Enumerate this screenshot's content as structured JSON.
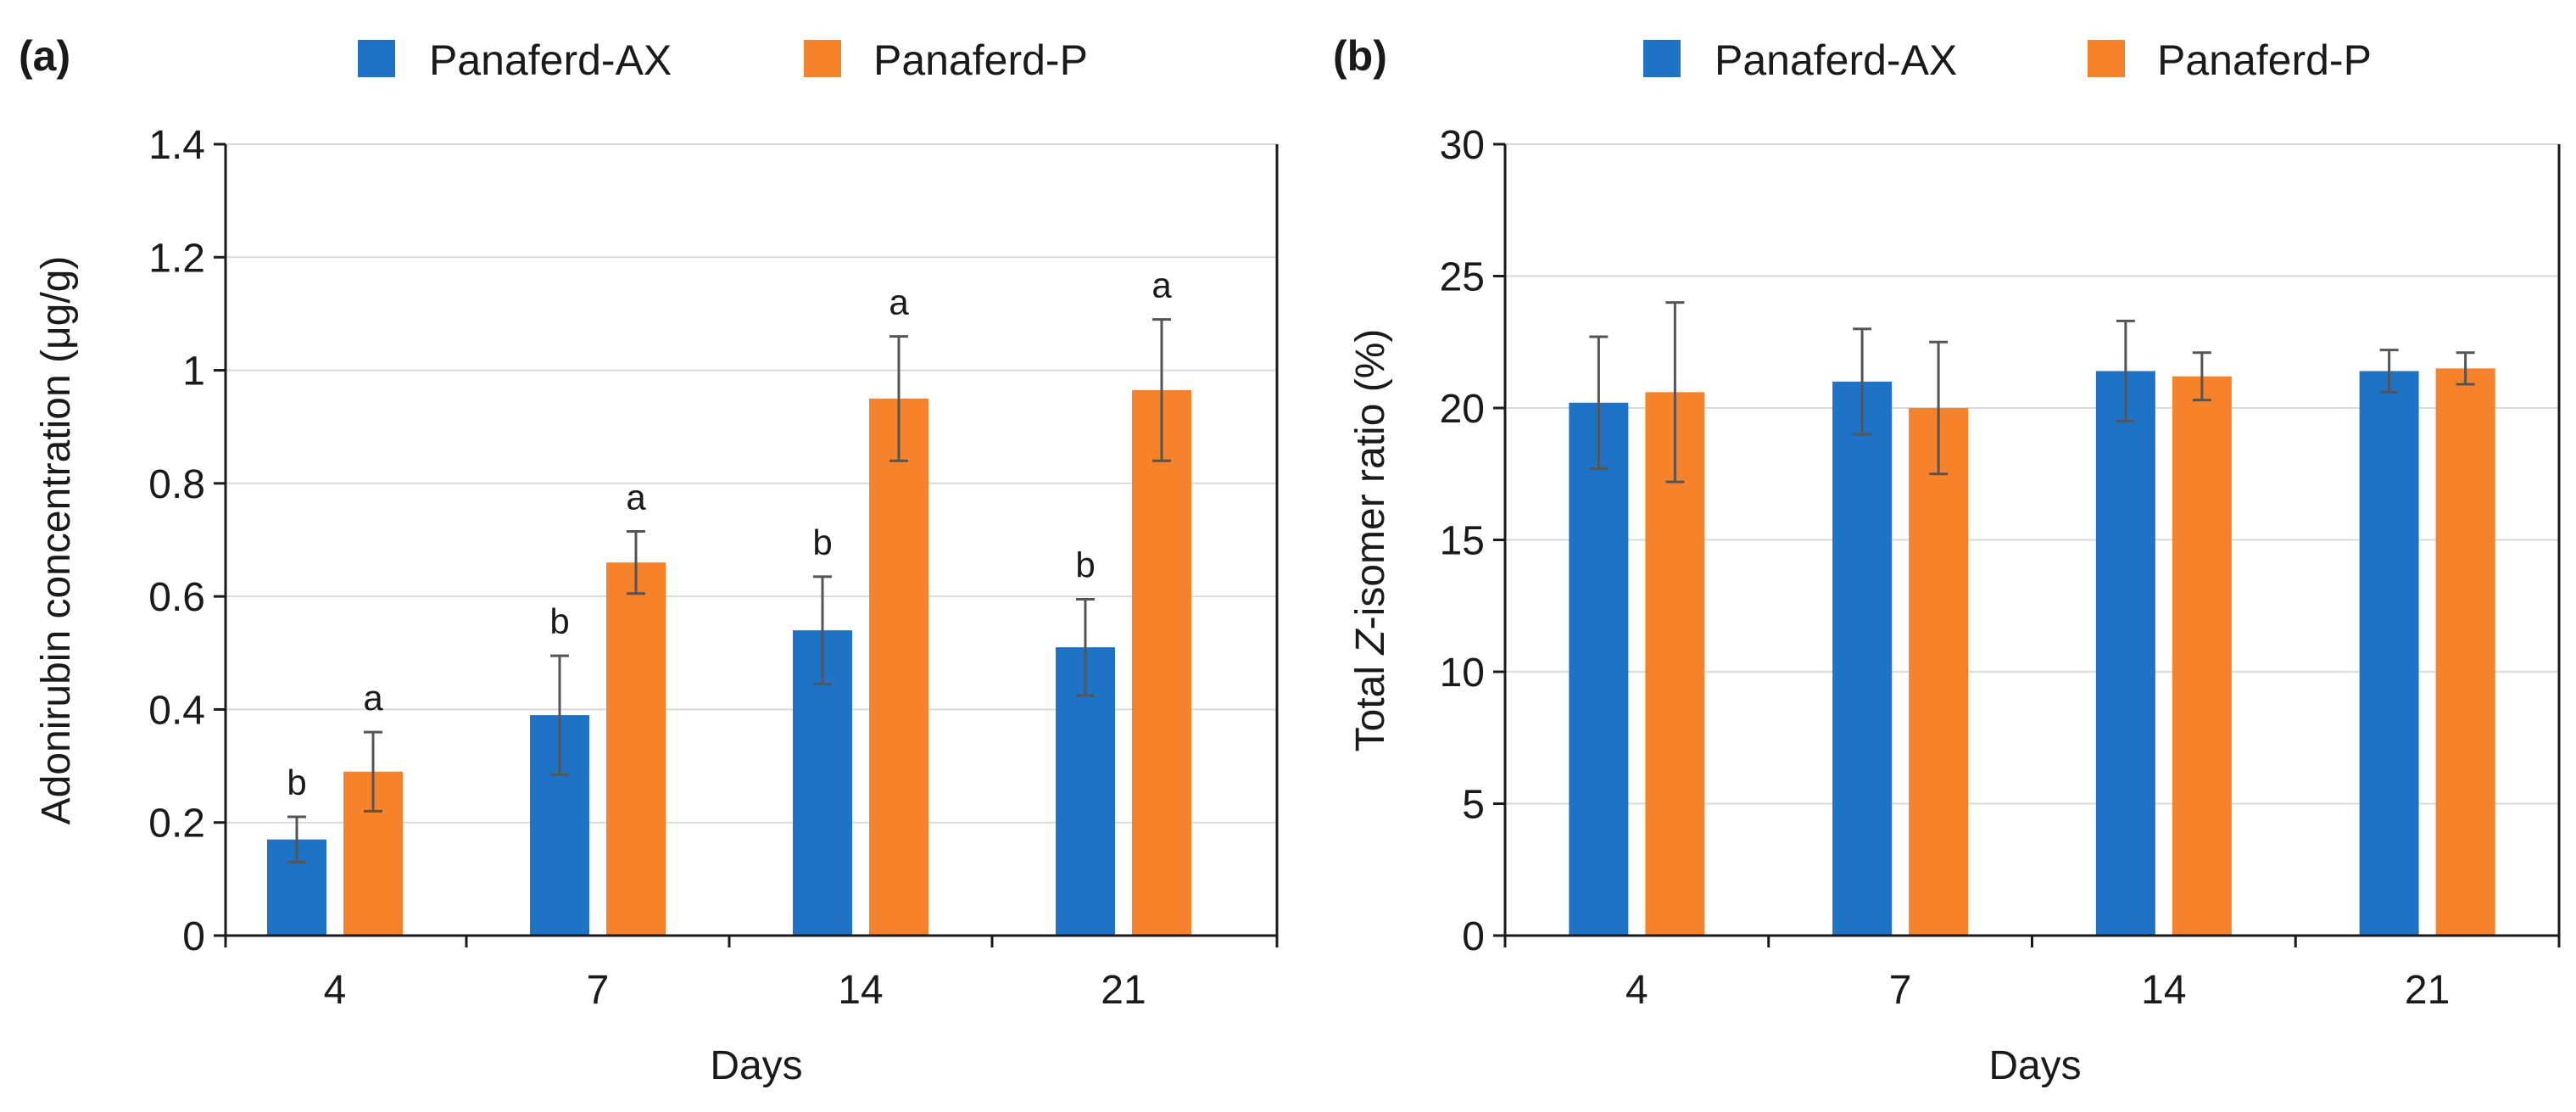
{
  "chart_data": [
    {
      "type": "bar",
      "panel_label": "(a)",
      "categories": [
        "4",
        "7",
        "14",
        "21"
      ],
      "series": [
        {
          "name": "Panaferd-AX",
          "color": "#1f73c7",
          "values": [
            0.17,
            0.39,
            0.54,
            0.51
          ],
          "errors": [
            0.04,
            0.105,
            0.095,
            0.085
          ],
          "significance": [
            "b",
            "b",
            "b",
            "b"
          ]
        },
        {
          "name": "Panaferd-P",
          "color": "#f6822b",
          "values": [
            0.29,
            0.66,
            0.95,
            0.965
          ],
          "errors": [
            0.07,
            0.055,
            0.11,
            0.125
          ],
          "significance": [
            "a",
            "a",
            "a",
            "a"
          ]
        }
      ],
      "xlabel": "Days",
      "ylabel": "Adonirubin concentration (μg/g)",
      "ylim": [
        0,
        1.4
      ],
      "yticks": [
        0,
        0.2,
        0.4,
        0.6,
        0.8,
        1,
        1.2,
        1.4
      ],
      "ytick_labels": [
        "0",
        "0.2",
        "0.4",
        "0.6",
        "0.8",
        "1",
        "1.2",
        "1.4"
      ],
      "grid": true,
      "legend_position": "top"
    },
    {
      "type": "bar",
      "panel_label": "(b)",
      "categories": [
        "4",
        "7",
        "14",
        "21"
      ],
      "series": [
        {
          "name": "Panaferd-AX",
          "color": "#1f73c7",
          "values": [
            20.2,
            21.0,
            21.4,
            21.4
          ],
          "errors": [
            2.5,
            2.0,
            1.9,
            0.8
          ]
        },
        {
          "name": "Panaferd-P",
          "color": "#f6822b",
          "values": [
            20.6,
            20.0,
            21.2,
            21.5
          ],
          "errors": [
            3.4,
            2.5,
            0.9,
            0.6
          ]
        }
      ],
      "xlabel": "Days",
      "ylabel_parts": [
        "Total ",
        "Z",
        "-isomer ratio (%)"
      ],
      "ylim": [
        0,
        30
      ],
      "yticks": [
        0,
        5,
        10,
        15,
        20,
        25,
        30
      ],
      "ytick_labels": [
        "0",
        "5",
        "10",
        "15",
        "20",
        "25",
        "30"
      ],
      "grid": true,
      "legend_position": "top"
    }
  ]
}
